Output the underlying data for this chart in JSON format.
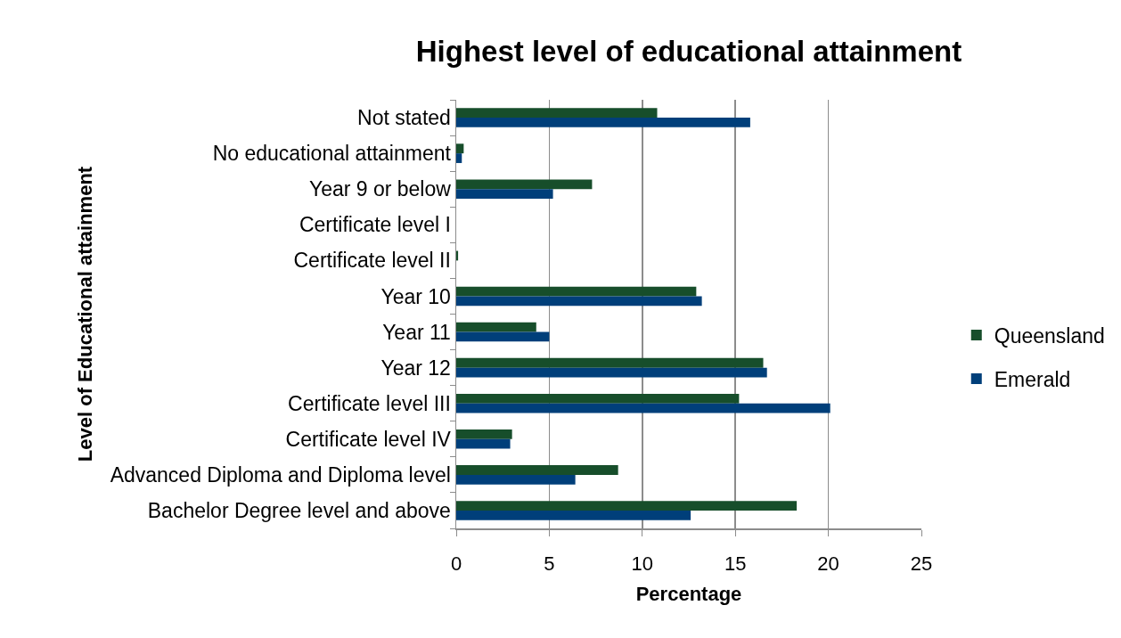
{
  "chart_data": {
    "type": "bar",
    "orientation": "horizontal",
    "title": "Highest level of educational attainment",
    "xlabel": "Percentage",
    "ylabel": "Level of Educational attainment",
    "categories": [
      "Not stated",
      "No educational attainment",
      "Year 9 or below",
      "Certificate level I",
      "Certificate level II",
      "Year 10",
      "Year 11",
      "Year 12",
      "Certificate level III",
      "Certificate level IV",
      "Advanced Diploma and Diploma level",
      "Bachelor Degree level and above"
    ],
    "series": [
      {
        "name": "Queensland",
        "color": "#174e2b",
        "values": [
          10.8,
          0.4,
          7.3,
          0,
          0.1,
          12.9,
          4.3,
          16.5,
          15.2,
          3.0,
          8.7,
          18.3
        ]
      },
      {
        "name": "Emerald",
        "color": "#003f7a",
        "values": [
          15.8,
          0.3,
          5.2,
          0,
          0,
          13.2,
          5.0,
          16.7,
          20.1,
          2.9,
          6.4,
          12.6
        ]
      }
    ],
    "xlim": [
      0,
      25
    ],
    "xticks": [
      0,
      5,
      10,
      15,
      20,
      25
    ],
    "grid": "x",
    "legend": "right"
  }
}
